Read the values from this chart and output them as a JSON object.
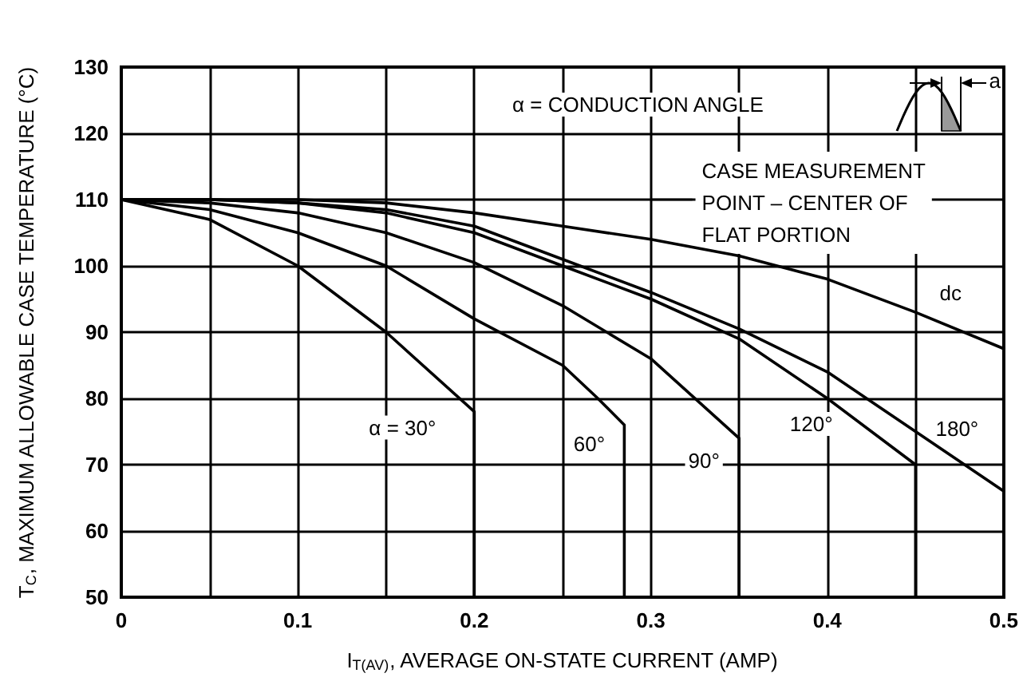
{
  "chart_data": {
    "type": "line",
    "xlabel": "I$_{T(AV)}$, AVERAGE ON-STATE CURRENT (AMP)",
    "ylabel": "T$_{C}$, MAXIMUM ALLOWABLE CASE TEMPERATURE (°C)",
    "xlim": [
      0,
      0.5
    ],
    "xticks": [
      0,
      {
        "value": 0.05,
        "label": null
      },
      0.1,
      {
        "value": 0.15,
        "label": null
      },
      0.2,
      {
        "value": 0.25,
        "label": null
      },
      0.3,
      {
        "value": 0.35,
        "label": null
      },
      0.4,
      {
        "value": 0.45,
        "label": null
      },
      0.5
    ],
    "ylim": [
      50,
      130
    ],
    "yticks": [
      50,
      60,
      70,
      80,
      90,
      100,
      110,
      120,
      130
    ],
    "grid": true,
    "legend": false,
    "marker": "none",
    "line_style": "solid",
    "series": [
      {
        "name": "α = 30°",
        "color": "#000000",
        "x": [
          0,
          0.05,
          0.1,
          0.15,
          0.2,
          0.2
        ],
        "values": [
          110,
          107,
          100,
          90,
          78,
          50
        ]
      },
      {
        "name": "60°",
        "color": "#000000",
        "x": [
          0,
          0.05,
          0.1,
          0.15,
          0.2,
          0.25,
          0.27,
          0.285,
          0.285
        ],
        "values": [
          110,
          108.5,
          105,
          100,
          92,
          85,
          80,
          76,
          50
        ]
      },
      {
        "name": "90°",
        "color": "#000000",
        "x": [
          0,
          0.05,
          0.1,
          0.15,
          0.2,
          0.25,
          0.3,
          0.35,
          0.35
        ],
        "values": [
          110,
          109.5,
          108,
          105,
          100.5,
          94,
          86,
          74,
          50
        ]
      },
      {
        "name": "120°",
        "color": "#000000",
        "x": [
          0,
          0.05,
          0.1,
          0.15,
          0.2,
          0.25,
          0.3,
          0.35,
          0.4,
          0.45,
          0.45
        ],
        "values": [
          110,
          110,
          109.5,
          108,
          105,
          100,
          95,
          89,
          80,
          70,
          50
        ]
      },
      {
        "name": "180°",
        "color": "#000000",
        "x": [
          0,
          0.05,
          0.1,
          0.15,
          0.2,
          0.25,
          0.3,
          0.35,
          0.4,
          0.45,
          0.5
        ],
        "values": [
          110,
          110,
          109.5,
          108.5,
          106,
          101,
          96,
          90.5,
          84,
          75,
          66
        ]
      },
      {
        "name": "dc",
        "color": "#000000",
        "x": [
          0,
          0.1,
          0.15,
          0.2,
          0.25,
          0.3,
          0.35,
          0.4,
          0.45,
          0.5
        ],
        "values": [
          110,
          110,
          109.5,
          108,
          106,
          104,
          101.5,
          98,
          93,
          87.5
        ]
      }
    ],
    "annotations": [
      "α = CONDUCTION ANGLE",
      "a",
      "CASE MEASUREMENT\nPOINT – CENTER OF\nFLAT PORTION"
    ]
  }
}
